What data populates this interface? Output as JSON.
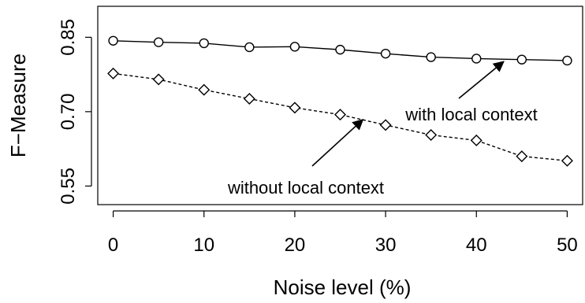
{
  "chart_data": {
    "type": "line",
    "xlabel": "Noise level (%)",
    "ylabel": "F−Measure",
    "x_ticks": [
      "0",
      "10",
      "20",
      "30",
      "40",
      "50"
    ],
    "y_ticks": [
      "0.55",
      "0.70",
      "0.85"
    ],
    "xlim": [
      -1.7,
      51.7
    ],
    "ylim": [
      0.5125,
      0.9125
    ],
    "grid": false,
    "legend": "none",
    "x": [
      0,
      5,
      10,
      15,
      20,
      25,
      30,
      35,
      40,
      45,
      50
    ],
    "series": [
      {
        "values": [
          0.843,
          0.84,
          0.838,
          0.83,
          0.831,
          0.825,
          0.817,
          0.81,
          0.807,
          0.805,
          0.803
        ],
        "line_style": "solid",
        "marker": "circle"
      },
      {
        "values": [
          0.777,
          0.765,
          0.744,
          0.726,
          0.708,
          0.694,
          0.673,
          0.653,
          0.642,
          0.61,
          0.601
        ],
        "line_style": "dashed",
        "marker": "diamond"
      }
    ],
    "annotations": [
      {
        "text": "with local context",
        "arrow_to": [
          43,
          0.801
        ]
      },
      {
        "text": "without local context",
        "arrow_to": [
          27.5,
          0.684
        ]
      }
    ]
  }
}
